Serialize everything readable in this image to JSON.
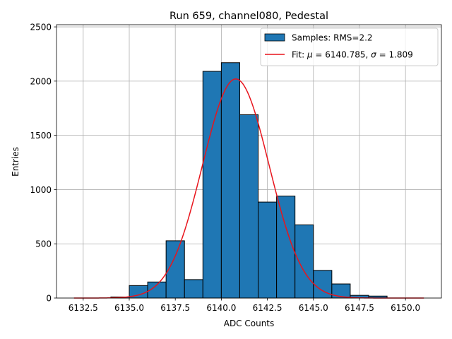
{
  "chart_data": {
    "type": "bar",
    "title": "Run 659, channel080, Pedestal",
    "xlabel": "ADC Counts",
    "ylabel": "Entries",
    "xlim": [
      6131.05,
      6151.95
    ],
    "ylim": [
      0,
      2520
    ],
    "xticks": [
      "6132.5",
      "6135.0",
      "6137.5",
      "6140.0",
      "6142.5",
      "6145.0",
      "6147.5",
      "6150.0"
    ],
    "xtick_values": [
      6132.5,
      6135.0,
      6137.5,
      6140.0,
      6142.5,
      6145.0,
      6147.5,
      6150.0
    ],
    "yticks": [
      "0",
      "500",
      "1000",
      "1500",
      "2000",
      "2500"
    ],
    "ytick_values": [
      0,
      500,
      1000,
      1500,
      2000,
      2500
    ],
    "grid": true,
    "legend_position": "top-right",
    "histogram": {
      "name": "Samples: RMS=2.2",
      "color": "#1f77b4",
      "edgecolor": "#000000",
      "bin_edges": [
        6134,
        6135,
        6136,
        6137,
        6138,
        6139,
        6140,
        6141,
        6142,
        6143,
        6144,
        6145,
        6146,
        6147,
        6148,
        6149
      ],
      "counts": [
        10,
        115,
        148,
        528,
        170,
        2090,
        2170,
        1690,
        885,
        940,
        675,
        255,
        130,
        25,
        18
      ]
    },
    "fit": {
      "name": "Fit: μ = 6140.785, σ = 1.809",
      "label_prefix": "Fit: ",
      "mu_symbol": "μ",
      "mu_text": " = 6140.785, ",
      "sigma_symbol": "σ",
      "sigma_text": " = 1.809",
      "color": "#e8141c",
      "mu": 6140.785,
      "sigma": 1.809,
      "amplitude": 2020,
      "x_range": [
        6132,
        6151
      ]
    }
  }
}
